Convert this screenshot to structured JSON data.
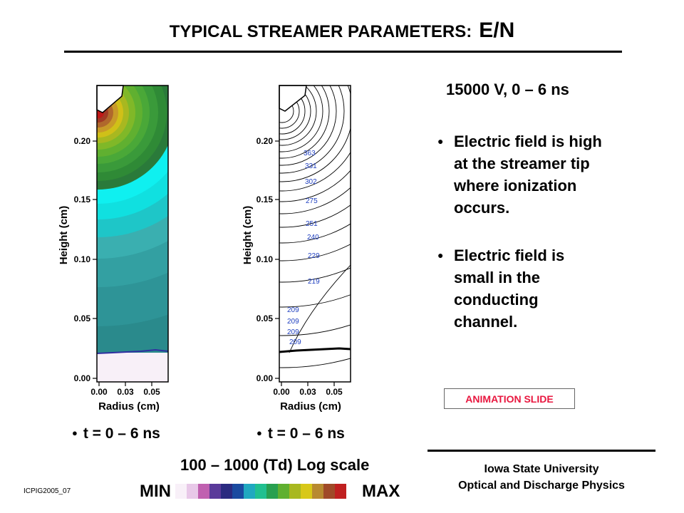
{
  "header": {
    "title_main": "TYPICAL STREAMER PARAMETERS:",
    "title_suffix": "E/N"
  },
  "plots": {
    "ylabel": "Height (cm)",
    "xlabel": "Radius (cm)",
    "yticks": [
      "0.00",
      "0.05",
      "0.10",
      "0.15",
      "0.20"
    ],
    "xticks": [
      "0.00",
      "0.03",
      "0.05"
    ],
    "left": {
      "time_label": "t = 0 – 6 ns"
    },
    "right": {
      "time_label": "t = 0 – 6 ns",
      "contour_labels": [
        "363",
        "331",
        "302",
        "275",
        "251",
        "240",
        "229",
        "219",
        "209",
        "209",
        "209",
        "209"
      ]
    }
  },
  "info": {
    "voltage": "15000 V,  0 – 6 ns",
    "bullets": [
      "Electric field is high\nat the streamer tip\nwhere ionization\noccurs.",
      "Electric field is\nsmall in the\nconducting\nchannel."
    ],
    "bullet_glyph": "●",
    "animation_badge": "ANIMATION SLIDE"
  },
  "scale": {
    "range_text": "100 – 1000 (Td)  Log scale",
    "min_label": "MIN",
    "max_label": "MAX",
    "colors": [
      "#f8f0f8",
      "#e8c8e8",
      "#c060b0",
      "#5a3a9a",
      "#2a2a80",
      "#1a4aa0",
      "#20a8c0",
      "#20c090",
      "#28a050",
      "#60b030",
      "#a8b820",
      "#d8c818",
      "#b88a30",
      "#a04a28",
      "#c02020"
    ]
  },
  "footer": {
    "slide_id": "ICPIG2005_07",
    "university": "Iowa State University",
    "department": "Optical and Discharge Physics"
  }
}
